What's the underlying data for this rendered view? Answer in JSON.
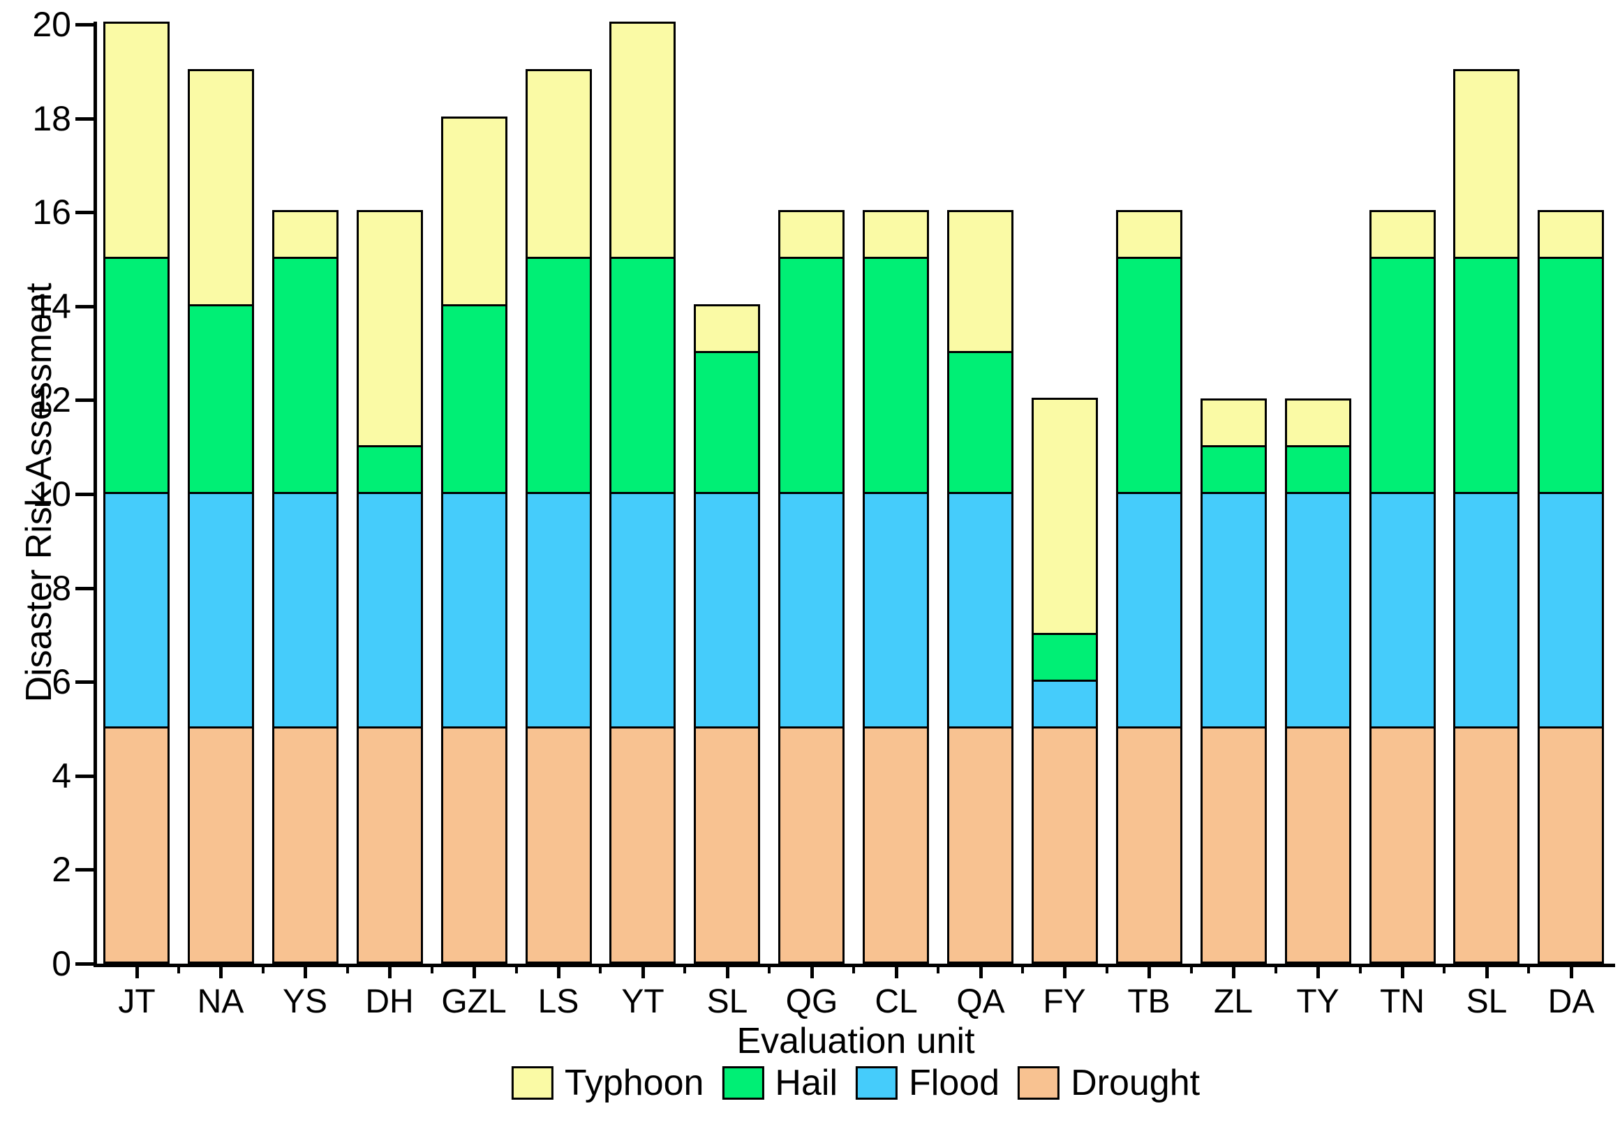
{
  "chart_data": {
    "type": "bar",
    "stacked": true,
    "title": "",
    "xlabel": "Evaluation unit",
    "ylabel": "Disaster Risk Assessment",
    "ylim": [
      0,
      20
    ],
    "y_ticks": [
      0,
      2,
      4,
      6,
      8,
      10,
      12,
      14,
      16,
      18,
      20
    ],
    "grid": false,
    "legend_position": "bottom",
    "legend_order": [
      "Typhoon",
      "Hail",
      "Flood",
      "Drought"
    ],
    "categories": [
      "JT",
      "NA",
      "YS",
      "DH",
      "GZL",
      "LS",
      "YT",
      "SL",
      "QG",
      "CL",
      "QA",
      "FY",
      "TB",
      "ZL",
      "TY",
      "TN",
      "SL",
      "DA"
    ],
    "series": [
      {
        "name": "Drought",
        "color": "#F8C291",
        "values": [
          5,
          5,
          5,
          5,
          5,
          5,
          5,
          5,
          5,
          5,
          5,
          5,
          5,
          5,
          5,
          5,
          5,
          5
        ]
      },
      {
        "name": "Flood",
        "color": "#45CCFB",
        "values": [
          5,
          5,
          5,
          5,
          5,
          5,
          5,
          5,
          5,
          5,
          5,
          1,
          5,
          5,
          5,
          5,
          5,
          5
        ]
      },
      {
        "name": "Hail",
        "color": "#00EF75",
        "values": [
          5,
          4,
          5,
          1,
          4,
          5,
          5,
          3,
          5,
          5,
          3,
          1,
          5,
          1,
          1,
          5,
          5,
          5
        ]
      },
      {
        "name": "Typhoon",
        "color": "#FAFAA5",
        "values": [
          5,
          5,
          1,
          5,
          4,
          4,
          5,
          1,
          1,
          1,
          3,
          5,
          1,
          1,
          1,
          1,
          4,
          1
        ]
      }
    ],
    "totals": [
      20,
      19,
      16,
      16,
      18,
      19,
      20,
      14,
      16,
      16,
      16,
      12,
      16,
      12,
      12,
      16,
      19,
      16
    ]
  },
  "axis_color": "#000000",
  "background_color": "#FFFFFF"
}
